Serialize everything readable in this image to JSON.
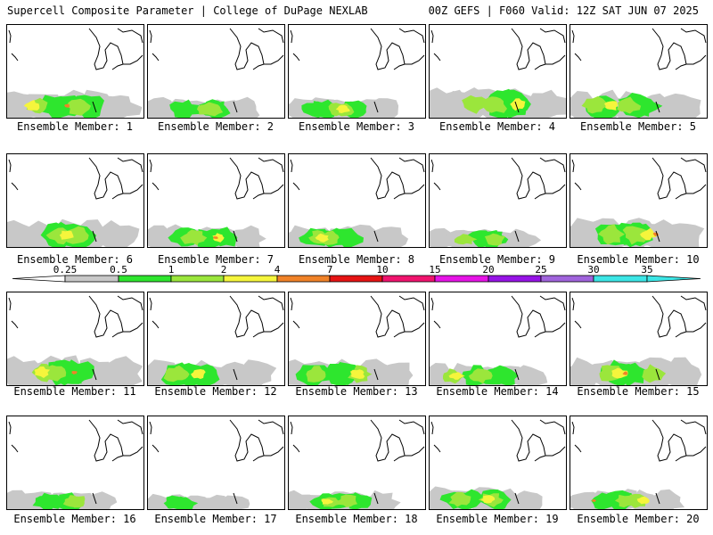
{
  "header": {
    "title": "Supercell Composite Parameter | College of DuPage NEXLAB",
    "valid": "00Z GEFS | F060 Valid: 12Z SAT JUN 07 2025"
  },
  "colors": {
    "gray": "#c8c8c8",
    "green": "#2ee62e",
    "lime": "#9be63c",
    "yellow": "#f5f53c",
    "orange": "#f08228",
    "red": "#e61414",
    "crimson": "#f0146e",
    "magenta": "#e614e6",
    "violet": "#9614e6",
    "purple": "#a064dc",
    "cyan": "#3ce6e6"
  },
  "legend": {
    "ticks": [
      "0.25",
      "0.5",
      "1",
      "2",
      "4",
      "7",
      "10",
      "15",
      "20",
      "25",
      "30",
      "35"
    ],
    "bins": [
      "gray",
      "green",
      "lime",
      "yellow",
      "orange",
      "red",
      "crimson",
      "magenta",
      "violet",
      "purple",
      "cyan"
    ]
  },
  "members": [
    {
      "label": "Ensemble Member: 1",
      "spread": 0.55,
      "max_level": 4
    },
    {
      "label": "Ensemble Member: 2",
      "spread": 0.35,
      "max_level": 2
    },
    {
      "label": "Ensemble Member: 3",
      "spread": 0.35,
      "max_level": 3
    },
    {
      "label": "Ensemble Member: 4",
      "spread": 0.65,
      "max_level": 3
    },
    {
      "label": "Ensemble Member: 5",
      "spread": 0.55,
      "max_level": 3
    },
    {
      "label": "Ensemble Member: 6",
      "spread": 0.55,
      "max_level": 3
    },
    {
      "label": "Ensemble Member: 7",
      "spread": 0.4,
      "max_level": 4
    },
    {
      "label": "Ensemble Member: 8",
      "spread": 0.4,
      "max_level": 3
    },
    {
      "label": "Ensemble Member: 9",
      "spread": 0.3,
      "max_level": 2
    },
    {
      "label": "Ensemble Member: 10",
      "spread": 0.6,
      "max_level": 4
    },
    {
      "label": "Ensemble Member: 11",
      "spread": 0.6,
      "max_level": 4
    },
    {
      "label": "Ensemble Member: 12",
      "spread": 0.5,
      "max_level": 3
    },
    {
      "label": "Ensemble Member: 13",
      "spread": 0.5,
      "max_level": 3
    },
    {
      "label": "Ensemble Member: 14",
      "spread": 0.4,
      "max_level": 3
    },
    {
      "label": "Ensemble Member: 15",
      "spread": 0.55,
      "max_level": 4
    },
    {
      "label": "Ensemble Member: 16",
      "spread": 0.3,
      "max_level": 2
    },
    {
      "label": "Ensemble Member: 17",
      "spread": 0.2,
      "max_level": 1
    },
    {
      "label": "Ensemble Member: 18",
      "spread": 0.3,
      "max_level": 3
    },
    {
      "label": "Ensemble Member: 19",
      "spread": 0.4,
      "max_level": 3
    },
    {
      "label": "Ensemble Member: 20",
      "spread": 0.35,
      "max_level": 4
    }
  ]
}
